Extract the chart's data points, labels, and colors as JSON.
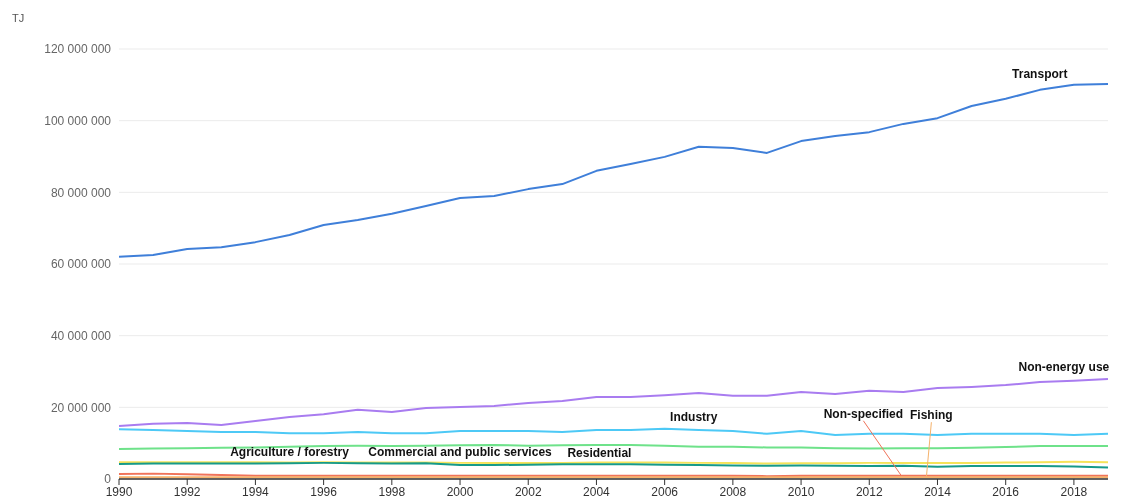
{
  "chart_data": {
    "type": "line",
    "ylabel": "TJ",
    "x": [
      1990,
      1991,
      1992,
      1993,
      1994,
      1995,
      1996,
      1997,
      1998,
      1999,
      2000,
      2001,
      2002,
      2003,
      2004,
      2005,
      2006,
      2007,
      2008,
      2009,
      2010,
      2011,
      2012,
      2013,
      2014,
      2015,
      2016,
      2017,
      2018,
      2019
    ],
    "xlim": [
      1990,
      2019
    ],
    "xticks": [
      1990,
      1992,
      1994,
      1996,
      1998,
      2000,
      2002,
      2004,
      2006,
      2008,
      2010,
      2012,
      2014,
      2016,
      2018
    ],
    "ylim": [
      0,
      120000000
    ],
    "yticks": [
      {
        "value": 0,
        "label": "0"
      },
      {
        "value": 20000000,
        "label": "20 000 000"
      },
      {
        "value": 40000000,
        "label": "40 000 000"
      },
      {
        "value": 60000000,
        "label": "60 000 000"
      },
      {
        "value": 80000000,
        "label": "80 000 000"
      },
      {
        "value": 100000000,
        "label": "100 000 000"
      },
      {
        "value": 120000000,
        "label": "120 000 000"
      }
    ],
    "grid": "y",
    "legend": false,
    "marker": "none",
    "line_style": "solid",
    "series": [
      {
        "name": "Transport",
        "color": "#3f7fd9",
        "values": [
          62000000,
          62500000,
          64200000,
          64700000,
          66100000,
          68100000,
          70900000,
          72300000,
          74000000,
          76200000,
          78400000,
          79000000,
          80900000,
          82300000,
          86000000,
          87900000,
          89900000,
          92700000,
          92400000,
          91000000,
          94300000,
          95700000,
          96800000,
          99100000,
          100700000,
          104100000,
          106100000,
          108600000,
          110000000,
          110200000
        ]
      },
      {
        "name": "Non-energy use",
        "color": "#a97cf0",
        "values": [
          14800000,
          15400000,
          15600000,
          15100000,
          16200000,
          17300000,
          18100000,
          19300000,
          18700000,
          19800000,
          20100000,
          20400000,
          21200000,
          21800000,
          22900000,
          22900000,
          23400000,
          24000000,
          23200000,
          23200000,
          24300000,
          23700000,
          24600000,
          24300000,
          25400000,
          25700000,
          26200000,
          27100000,
          27400000,
          27900000
        ]
      },
      {
        "name": "Industry",
        "color": "#4dc9f6",
        "values": [
          13900000,
          13700000,
          13400000,
          13100000,
          13100000,
          12800000,
          12800000,
          13100000,
          12800000,
          12800000,
          13400000,
          13400000,
          13400000,
          13100000,
          13700000,
          13700000,
          14000000,
          13700000,
          13400000,
          12600000,
          13400000,
          12300000,
          12600000,
          12600000,
          12300000,
          12600000,
          12600000,
          12600000,
          12300000,
          12600000
        ]
      },
      {
        "name": "Residential",
        "color": "#6ee28a",
        "values": [
          8400000,
          8500000,
          8600000,
          8700000,
          8800000,
          9000000,
          9200000,
          9300000,
          9200000,
          9300000,
          9400000,
          9500000,
          9300000,
          9400000,
          9500000,
          9500000,
          9300000,
          9000000,
          9000000,
          8800000,
          8800000,
          8600000,
          8500000,
          8600000,
          8600000,
          8700000,
          8900000,
          9200000,
          9200000,
          9200000
        ]
      },
      {
        "name": "Commercial and public services",
        "color": "#f5e35a",
        "values": [
          4700000,
          4700000,
          4700000,
          4700000,
          4700000,
          4600000,
          4700000,
          4600000,
          4600000,
          4600000,
          4500000,
          4500000,
          4500000,
          4500000,
          4600000,
          4600000,
          4600000,
          4500000,
          4500000,
          4300000,
          4400000,
          4400000,
          4500000,
          4500000,
          4500000,
          4500000,
          4600000,
          4700000,
          4800000,
          4700000
        ]
      },
      {
        "name": "Agriculture / forestry",
        "color": "#159a8a",
        "values": [
          4200000,
          4300000,
          4300000,
          4300000,
          4300000,
          4400000,
          4500000,
          4400000,
          4300000,
          4400000,
          3900000,
          3900000,
          4000000,
          4100000,
          4100000,
          4100000,
          4000000,
          3900000,
          3800000,
          3700000,
          3800000,
          3700000,
          3600000,
          3700000,
          3400000,
          3600000,
          3600000,
          3600000,
          3500000,
          3200000
        ]
      },
      {
        "name": "Non-specified",
        "color": "#f0735a",
        "values": [
          1400000,
          1500000,
          1300000,
          1100000,
          900000,
          900000,
          900000,
          900000,
          900000,
          900000,
          900000,
          900000,
          900000,
          900000,
          900000,
          900000,
          900000,
          900000,
          900000,
          800000,
          900000,
          900000,
          900000,
          900000,
          900000,
          900000,
          900000,
          900000,
          900000,
          900000
        ]
      },
      {
        "name": "Fishing",
        "color": "#f5b26b",
        "values": [
          500000,
          500000,
          500000,
          500000,
          500000,
          500000,
          500000,
          500000,
          500000,
          500000,
          500000,
          500000,
          500000,
          500000,
          500000,
          500000,
          500000,
          500000,
          500000,
          500000,
          500000,
          500000,
          500000,
          500000,
          500000,
          500000,
          500000,
          500000,
          500000,
          500000
        ]
      }
    ]
  }
}
